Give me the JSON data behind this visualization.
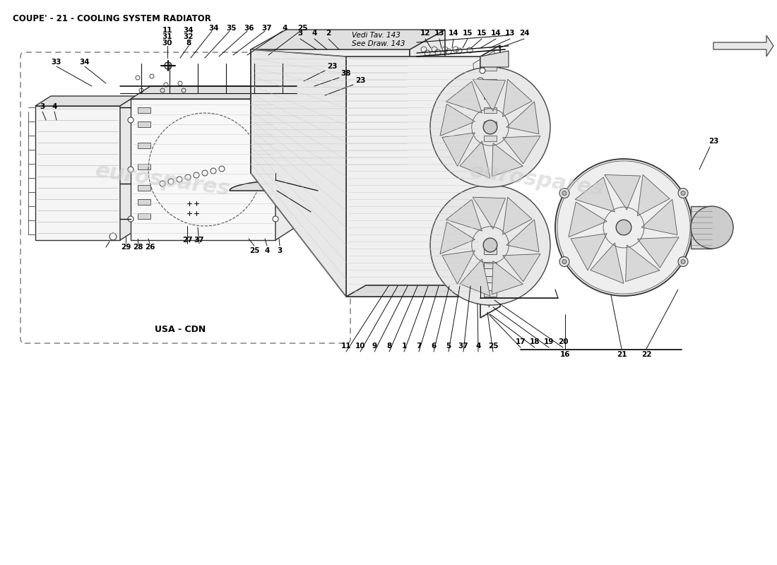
{
  "title": "COUPE' - 21 - COOLING SYSTEM RADIATOR",
  "title_fontsize": 8.5,
  "bg_color": "#ffffff",
  "text_color": "#000000",
  "line_color": "#1a1a1a",
  "watermark_color": "#cccccc",
  "watermark_text": "eurospares",
  "usa_cdn_label": "USA - CDN",
  "vedi_line1": "Vedi Tav. 143",
  "vedi_line2": "See Draw. 143",
  "fig_w": 11.0,
  "fig_h": 8.0
}
